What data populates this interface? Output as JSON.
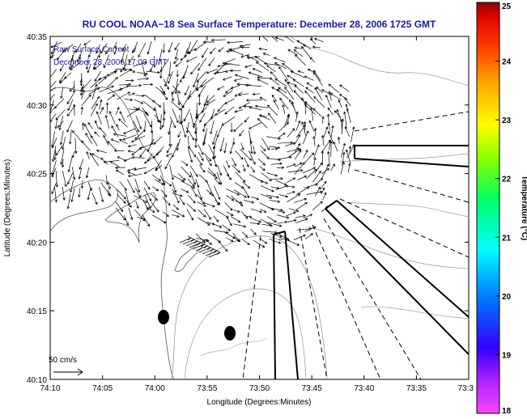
{
  "title": "RU COOL  NOAA−18  Sea Surface Temperature:  December 28, 2006 1725 GMT",
  "annotations": {
    "current_label": "Raw Surface Current",
    "current_time": "December 28, 2006 17:00 GMT",
    "scale_label": "50 cm/s"
  },
  "chart_data": {
    "type": "map",
    "xlabel": "Longitude (Degrees:Minutes)",
    "ylabel": "Latitude (Degrees:Minutes)",
    "x_ticks": [
      "74:10",
      "74:05",
      "74:00",
      "73:55",
      "73:50",
      "73:45",
      "73:40",
      "73:35",
      "73:3"
    ],
    "y_ticks": [
      "40:35",
      "40:30",
      "40:25",
      "40:20",
      "40:15",
      "40:10"
    ],
    "colorbar": {
      "label": "Temperature (°C)",
      "range": [
        18,
        25
      ],
      "ticks": [
        "25",
        "24",
        "23",
        "22",
        "21",
        "20",
        "19",
        "18"
      ],
      "colormap": [
        "#ff44ff",
        "#8800ff",
        "#0000ff",
        "#0088ff",
        "#00ffff",
        "#00ff66",
        "#88ff00",
        "#ffff00",
        "#ffaa00",
        "#ff4400",
        "#ff0000",
        "#880000"
      ]
    },
    "markers": [
      {
        "type": "black-dot",
        "lon": "73:59",
        "lat": "40:14.6"
      },
      {
        "type": "black-dot",
        "lon": "73:52",
        "lat": "40:13.3"
      }
    ]
  }
}
